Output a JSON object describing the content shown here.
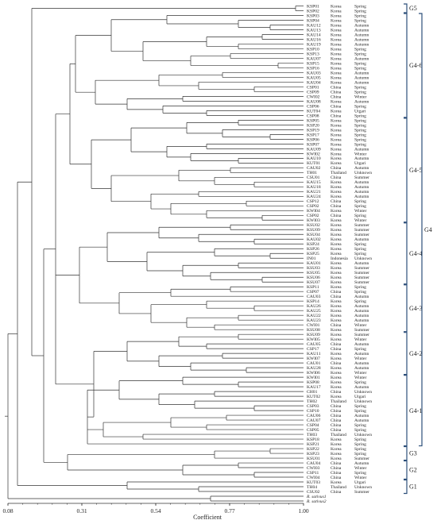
{
  "dendrogram": {
    "axis": {
      "label": "Coefficient",
      "ticks": [
        "0.08",
        "0.31",
        "0.54",
        "0.77",
        "1.00"
      ],
      "tick_values": [
        0.08,
        0.31,
        0.54,
        0.77,
        1.0
      ]
    },
    "leaves": [
      {
        "id": "KSP01",
        "region": "Korea",
        "season": "Spring"
      },
      {
        "id": "KSP02",
        "region": "Korea",
        "season": "Spring"
      },
      {
        "id": "KSP03",
        "region": "Korea",
        "season": "Spring"
      },
      {
        "id": "KSP04",
        "region": "Korea",
        "season": "Spring"
      },
      {
        "id": "KAU12",
        "region": "Korea",
        "season": "Autumn"
      },
      {
        "id": "KAU13",
        "region": "Korea",
        "season": "Autumn"
      },
      {
        "id": "KAU14",
        "region": "Korea",
        "season": "Autumn"
      },
      {
        "id": "KAU16",
        "region": "Korea",
        "season": "Autumn"
      },
      {
        "id": "KAU19",
        "region": "Korea",
        "season": "Autumn"
      },
      {
        "id": "KSP10",
        "region": "Korea",
        "season": "Spring"
      },
      {
        "id": "KSP13",
        "region": "Korea",
        "season": "Spring"
      },
      {
        "id": "KAU07",
        "region": "Korea",
        "season": "Autumn"
      },
      {
        "id": "KSP15",
        "region": "Korea",
        "season": "Spring"
      },
      {
        "id": "KSP16",
        "region": "Korea",
        "season": "Spring"
      },
      {
        "id": "KAU03",
        "region": "Korea",
        "season": "Autumn"
      },
      {
        "id": "KAU05",
        "region": "Korea",
        "season": "Autumn"
      },
      {
        "id": "KAU04",
        "region": "Korea",
        "season": "Autumn"
      },
      {
        "id": "CSP01",
        "region": "China",
        "season": "Spring"
      },
      {
        "id": "CSP09",
        "region": "China",
        "season": "Spring"
      },
      {
        "id": "CWI02",
        "region": "China",
        "season": "Winter"
      },
      {
        "id": "KAU08",
        "region": "Korea",
        "season": "Autumn"
      },
      {
        "id": "CSP06",
        "region": "China",
        "season": "Spring"
      },
      {
        "id": "KUT04",
        "region": "Korea",
        "season": "Utgari"
      },
      {
        "id": "CSP08",
        "region": "China",
        "season": "Spring"
      },
      {
        "id": "KSP05",
        "region": "Korea",
        "season": "Spring"
      },
      {
        "id": "KSP20",
        "region": "Korea",
        "season": "Spring"
      },
      {
        "id": "KSP19",
        "region": "Korea",
        "season": "Spring"
      },
      {
        "id": "KSP17",
        "region": "Korea",
        "season": "Spring"
      },
      {
        "id": "KSP06",
        "region": "Korea",
        "season": "Spring"
      },
      {
        "id": "KSP07",
        "region": "Korea",
        "season": "Spring"
      },
      {
        "id": "KAU09",
        "region": "Korea",
        "season": "Autumn"
      },
      {
        "id": "KWI02",
        "region": "Korea",
        "season": "Winter"
      },
      {
        "id": "KAU10",
        "region": "Korea",
        "season": "Autumn"
      },
      {
        "id": "KUT01",
        "region": "Korea",
        "season": "Utgari"
      },
      {
        "id": "CAU02",
        "region": "China",
        "season": "Autumn"
      },
      {
        "id": "TH01",
        "region": "Thailand",
        "season": "Unknown"
      },
      {
        "id": "CSU01",
        "region": "China",
        "season": "Summer"
      },
      {
        "id": "KAU15",
        "region": "Korea",
        "season": "Autumn"
      },
      {
        "id": "KAU18",
        "region": "Korea",
        "season": "Autumn"
      },
      {
        "id": "KAU21",
        "region": "Korea",
        "season": "Autumn"
      },
      {
        "id": "KAU24",
        "region": "Korea",
        "season": "Autumn"
      },
      {
        "id": "CSP12",
        "region": "China",
        "season": "Spring"
      },
      {
        "id": "CSP02",
        "region": "China",
        "season": "Spring"
      },
      {
        "id": "KWI04",
        "region": "Korea",
        "season": "Winter"
      },
      {
        "id": "CSP02",
        "region": "China",
        "season": "Spring"
      },
      {
        "id": "KWI03",
        "region": "Korea",
        "season": "Winter"
      },
      {
        "id": "KSU02",
        "region": "Korea",
        "season": "Summer"
      },
      {
        "id": "KSU09",
        "region": "Korea",
        "season": "Summer"
      },
      {
        "id": "KSU04",
        "region": "Korea",
        "season": "Summer"
      },
      {
        "id": "KAU02",
        "region": "Korea",
        "season": "Autumn"
      },
      {
        "id": "KSP24",
        "region": "Korea",
        "season": "Spring"
      },
      {
        "id": "KSP26",
        "region": "Korea",
        "season": "Spring"
      },
      {
        "id": "KSP25",
        "region": "Korea",
        "season": "Spring"
      },
      {
        "id": "IN01",
        "region": "Indonesia",
        "season": "Unknown"
      },
      {
        "id": "KAU01",
        "region": "Korea",
        "season": "Autumn"
      },
      {
        "id": "KSU03",
        "region": "Korea",
        "season": "Summer"
      },
      {
        "id": "KSU05",
        "region": "Korea",
        "season": "Summer"
      },
      {
        "id": "KSU06",
        "region": "Korea",
        "season": "Summer"
      },
      {
        "id": "KSU07",
        "region": "Korea",
        "season": "Summer"
      },
      {
        "id": "KSP11",
        "region": "Korea",
        "season": "Spring"
      },
      {
        "id": "CSP07",
        "region": "China",
        "season": "Spring"
      },
      {
        "id": "CAU03",
        "region": "China",
        "season": "Autumn"
      },
      {
        "id": "KSP14",
        "region": "Korea",
        "season": "Spring"
      },
      {
        "id": "KAU26",
        "region": "Korea",
        "season": "Autumn"
      },
      {
        "id": "KAU25",
        "region": "Korea",
        "season": "Autumn"
      },
      {
        "id": "KAU22",
        "region": "Korea",
        "season": "Autumn"
      },
      {
        "id": "KAU23",
        "region": "Korea",
        "season": "Autumn"
      },
      {
        "id": "CWI01",
        "region": "China",
        "season": "Winter"
      },
      {
        "id": "KSU08",
        "region": "Korea",
        "season": "Summer"
      },
      {
        "id": "KSU09",
        "region": "Korea",
        "season": "Summer"
      },
      {
        "id": "KWI05",
        "region": "Korea",
        "season": "Winter"
      },
      {
        "id": "CAU05",
        "region": "China",
        "season": "Autumn"
      },
      {
        "id": "CSP17",
        "region": "China",
        "season": "Spring"
      },
      {
        "id": "KAU11",
        "region": "Korea",
        "season": "Autumn"
      },
      {
        "id": "KWI07",
        "region": "Korea",
        "season": "Winter"
      },
      {
        "id": "CAU01",
        "region": "China",
        "season": "Autumn"
      },
      {
        "id": "KAU28",
        "region": "Korea",
        "season": "Autumn"
      },
      {
        "id": "KWI06",
        "region": "Korea",
        "season": "Winter"
      },
      {
        "id": "KWI01",
        "region": "Korea",
        "season": "Winter"
      },
      {
        "id": "KSP08",
        "region": "Korea",
        "season": "Spring"
      },
      {
        "id": "KAU17",
        "region": "Korea",
        "season": "Autumn"
      },
      {
        "id": "CH01",
        "region": "China",
        "season": "Unknown"
      },
      {
        "id": "KUT02",
        "region": "Korea",
        "season": "Utgari"
      },
      {
        "id": "TH02",
        "region": "Thailand",
        "season": "Unknown"
      },
      {
        "id": "CSP03",
        "region": "China",
        "season": "Spring"
      },
      {
        "id": "CSP10",
        "region": "China",
        "season": "Spring"
      },
      {
        "id": "CAU06",
        "region": "China",
        "season": "Autumn"
      },
      {
        "id": "CAU07",
        "region": "China",
        "season": "Autumn"
      },
      {
        "id": "CSP04",
        "region": "China",
        "season": "Spring"
      },
      {
        "id": "CSP05",
        "region": "China",
        "season": "Spring"
      },
      {
        "id": "TH03",
        "region": "Thailand",
        "season": "Unknown"
      },
      {
        "id": "KSP18",
        "region": "Korea",
        "season": "Spring"
      },
      {
        "id": "KSP21",
        "region": "Korea",
        "season": "Spring"
      },
      {
        "id": "KSP22",
        "region": "Korea",
        "season": "Spring"
      },
      {
        "id": "KSP23",
        "region": "Korea",
        "season": "Spring"
      },
      {
        "id": "KSU01",
        "region": "Korea",
        "season": "Summer"
      },
      {
        "id": "CAU04",
        "region": "China",
        "season": "Autumn"
      },
      {
        "id": "CWI03",
        "region": "China",
        "season": "Winter"
      },
      {
        "id": "CSP11",
        "region": "China",
        "season": "Spring"
      },
      {
        "id": "CWI04",
        "region": "China",
        "season": "Winter"
      },
      {
        "id": "KUT03",
        "region": "Korea",
        "season": "Utgari"
      },
      {
        "id": "TH04",
        "region": "Thailand",
        "season": "Unknown"
      },
      {
        "id": "CSU02",
        "region": "China",
        "season": "Summer"
      },
      {
        "id": "R. sativus1",
        "region": "",
        "season": ""
      },
      {
        "id": "R. sativus2",
        "region": "",
        "season": ""
      }
    ],
    "groups": [
      {
        "label": "G5",
        "first": 0,
        "last": 1
      },
      {
        "label": "G4-6",
        "first": 2,
        "last": 23
      },
      {
        "label": "G4-5",
        "first": 24,
        "last": 45
      },
      {
        "label": "G4-4",
        "first": 46,
        "last": 58
      },
      {
        "label": "G4-3",
        "first": 59,
        "last": 68
      },
      {
        "label": "G4-2",
        "first": 69,
        "last": 77
      },
      {
        "label": "G4-1",
        "first": 78,
        "last": 92
      },
      {
        "label": "G4",
        "first": 2,
        "last": 92
      },
      {
        "label": "G3",
        "first": 93,
        "last": 95
      },
      {
        "label": "G2",
        "first": 96,
        "last": 99
      },
      {
        "label": "G1",
        "first": 100,
        "last": 102
      }
    ]
  }
}
